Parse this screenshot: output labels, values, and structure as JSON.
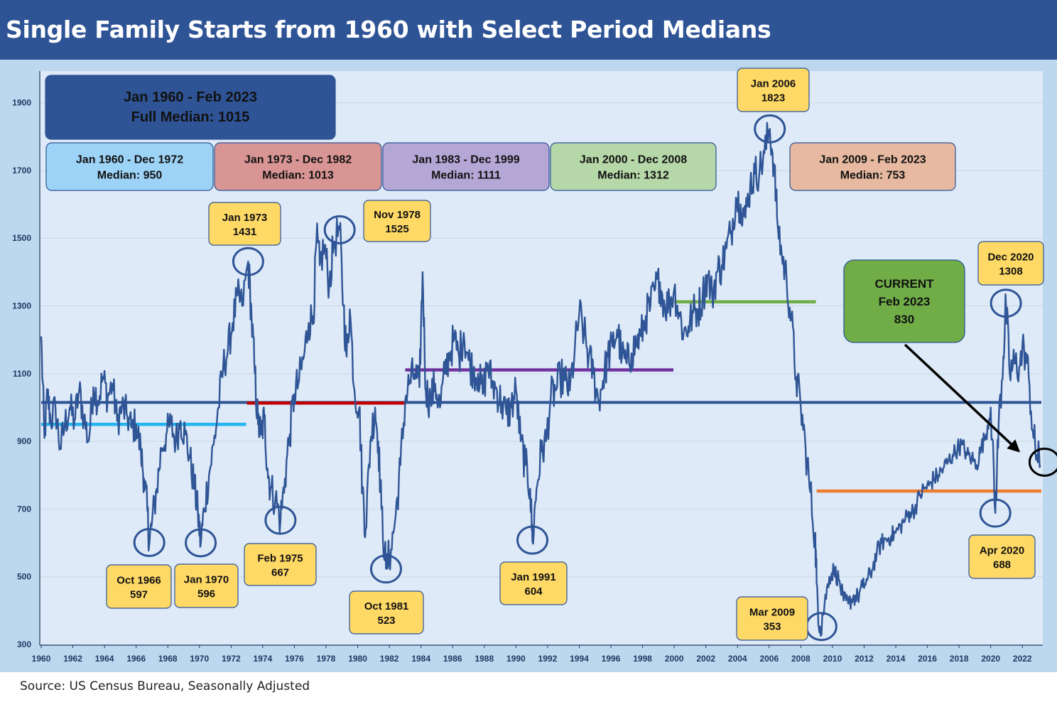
{
  "title": "Single Family Starts from 1960 with Select Period Medians",
  "source": "Source: US Census Bureau, Seasonally Adjusted",
  "colors": {
    "header": "#2f5496",
    "plot_bg": "#deeaf7",
    "frame": "#bdd7ee",
    "line": "#2f5596",
    "full_median": "#2f5496",
    "callout_fill": "#ffd966",
    "current_fill": "#70ad47"
  },
  "chart_data": {
    "type": "line",
    "title": "Single Family Starts from 1960 with Select Period Medians",
    "xlabel": "",
    "ylabel": "",
    "xlim": [
      1960,
      2023.2
    ],
    "ylim": [
      300,
      2000
    ],
    "yticks": [
      300,
      500,
      700,
      900,
      1100,
      1300,
      1500,
      1700,
      1900
    ],
    "xticks": [
      1960,
      1962,
      1964,
      1966,
      1968,
      1970,
      1972,
      1974,
      1976,
      1978,
      1980,
      1982,
      1984,
      1986,
      1988,
      1990,
      1992,
      1994,
      1996,
      1998,
      2000,
      2002,
      2004,
      2006,
      2008,
      2010,
      2012,
      2014,
      2016,
      2018,
      2020,
      2022
    ],
    "grid": "horizontal",
    "series": [
      {
        "values_xy": [
          [
            1960.0,
            1210
          ],
          [
            1960.2,
            910
          ],
          [
            1960.4,
            1040
          ],
          [
            1960.6,
            960
          ],
          [
            1960.9,
            1000
          ],
          [
            1961.2,
            880
          ],
          [
            1961.5,
            950
          ],
          [
            1961.8,
            1000
          ],
          [
            1962.1,
            960
          ],
          [
            1962.4,
            1050
          ],
          [
            1962.7,
            970
          ],
          [
            1963.0,
            900
          ],
          [
            1963.3,
            1060
          ],
          [
            1963.6,
            1020
          ],
          [
            1963.9,
            1090
          ],
          [
            1964.2,
            1030
          ],
          [
            1964.5,
            1070
          ],
          [
            1964.8,
            960
          ],
          [
            1965.1,
            1000
          ],
          [
            1965.4,
            980
          ],
          [
            1965.7,
            940
          ],
          [
            1966.0,
            950
          ],
          [
            1966.3,
            870
          ],
          [
            1966.5,
            790
          ],
          [
            1966.7,
            700
          ],
          [
            1966.83,
            597
          ],
          [
            1967.0,
            660
          ],
          [
            1967.3,
            760
          ],
          [
            1967.6,
            880
          ],
          [
            1967.9,
            920
          ],
          [
            1968.2,
            950
          ],
          [
            1968.5,
            900
          ],
          [
            1968.8,
            960
          ],
          [
            1969.1,
            920
          ],
          [
            1969.4,
            850
          ],
          [
            1969.7,
            760
          ],
          [
            1969.9,
            690
          ],
          [
            1970.08,
            596
          ],
          [
            1970.3,
            700
          ],
          [
            1970.6,
            800
          ],
          [
            1970.9,
            890
          ],
          [
            1971.2,
            1000
          ],
          [
            1971.5,
            1120
          ],
          [
            1971.8,
            1170
          ],
          [
            1972.1,
            1250
          ],
          [
            1972.4,
            1330
          ],
          [
            1972.7,
            1300
          ],
          [
            1973.08,
            1431
          ],
          [
            1973.3,
            1260
          ],
          [
            1973.5,
            1100
          ],
          [
            1973.7,
            950
          ],
          [
            1973.9,
            920
          ],
          [
            1974.1,
            970
          ],
          [
            1974.3,
            820
          ],
          [
            1974.5,
            760
          ],
          [
            1974.8,
            730
          ],
          [
            1975.12,
            667
          ],
          [
            1975.4,
            790
          ],
          [
            1975.7,
            920
          ],
          [
            1976.0,
            1040
          ],
          [
            1976.3,
            1080
          ],
          [
            1976.6,
            1150
          ],
          [
            1976.9,
            1250
          ],
          [
            1977.2,
            1270
          ],
          [
            1977.4,
            1500
          ],
          [
            1977.6,
            1420
          ],
          [
            1977.9,
            1480
          ],
          [
            1978.2,
            1360
          ],
          [
            1978.5,
            1490
          ],
          [
            1978.86,
            1525
          ],
          [
            1979.1,
            1300
          ],
          [
            1979.3,
            1150
          ],
          [
            1979.5,
            1290
          ],
          [
            1979.8,
            1050
          ],
          [
            1980.1,
            1000
          ],
          [
            1980.3,
            760
          ],
          [
            1980.5,
            640
          ],
          [
            1980.8,
            900
          ],
          [
            1981.1,
            1000
          ],
          [
            1981.3,
            900
          ],
          [
            1981.5,
            700
          ],
          [
            1981.79,
            523
          ],
          [
            1982.1,
            580
          ],
          [
            1982.4,
            680
          ],
          [
            1982.7,
            830
          ],
          [
            1983.0,
            1020
          ],
          [
            1983.3,
            1080
          ],
          [
            1983.6,
            1100
          ],
          [
            1983.9,
            1060
          ],
          [
            1984.1,
            1400
          ],
          [
            1984.3,
            1050
          ],
          [
            1984.6,
            1020
          ],
          [
            1984.9,
            1070
          ],
          [
            1985.2,
            1000
          ],
          [
            1985.5,
            1100
          ],
          [
            1985.8,
            1160
          ],
          [
            1986.1,
            1200
          ],
          [
            1986.4,
            1150
          ],
          [
            1986.7,
            1220
          ],
          [
            1987.0,
            1140
          ],
          [
            1987.3,
            1110
          ],
          [
            1987.6,
            1100
          ],
          [
            1987.9,
            1040
          ],
          [
            1988.2,
            1130
          ],
          [
            1988.5,
            1070
          ],
          [
            1988.8,
            1050
          ],
          [
            1989.1,
            1010
          ],
          [
            1989.4,
            980
          ],
          [
            1989.7,
            1000
          ],
          [
            1990.0,
            1050
          ],
          [
            1990.3,
            900
          ],
          [
            1990.6,
            830
          ],
          [
            1990.9,
            760
          ],
          [
            1991.04,
            604
          ],
          [
            1991.3,
            760
          ],
          [
            1991.6,
            870
          ],
          [
            1991.9,
            900
          ],
          [
            1992.2,
            1030
          ],
          [
            1992.5,
            1050
          ],
          [
            1992.8,
            1090
          ],
          [
            1993.1,
            1080
          ],
          [
            1993.4,
            1050
          ],
          [
            1993.7,
            1160
          ],
          [
            1994.0,
            1280
          ],
          [
            1994.3,
            1220
          ],
          [
            1994.6,
            1150
          ],
          [
            1994.9,
            1100
          ],
          [
            1995.2,
            1020
          ],
          [
            1995.5,
            1080
          ],
          [
            1995.8,
            1150
          ],
          [
            1996.1,
            1180
          ],
          [
            1996.4,
            1230
          ],
          [
            1996.7,
            1150
          ],
          [
            1997.0,
            1130
          ],
          [
            1997.3,
            1160
          ],
          [
            1997.6,
            1190
          ],
          [
            1997.9,
            1210
          ],
          [
            1998.2,
            1270
          ],
          [
            1998.5,
            1300
          ],
          [
            1998.8,
            1350
          ],
          [
            1999.1,
            1370
          ],
          [
            1999.4,
            1300
          ],
          [
            1999.7,
            1310
          ],
          [
            2000.0,
            1350
          ],
          [
            2000.3,
            1280
          ],
          [
            2000.6,
            1220
          ],
          [
            2000.9,
            1240
          ],
          [
            2001.2,
            1280
          ],
          [
            2001.5,
            1290
          ],
          [
            2001.8,
            1330
          ],
          [
            2002.1,
            1390
          ],
          [
            2002.4,
            1330
          ],
          [
            2002.7,
            1400
          ],
          [
            2003.0,
            1420
          ],
          [
            2003.3,
            1470
          ],
          [
            2003.6,
            1520
          ],
          [
            2003.9,
            1620
          ],
          [
            2004.2,
            1600
          ],
          [
            2004.5,
            1560
          ],
          [
            2004.8,
            1660
          ],
          [
            2005.1,
            1690
          ],
          [
            2005.4,
            1700
          ],
          [
            2005.7,
            1750
          ],
          [
            2006.04,
            1823
          ],
          [
            2006.3,
            1720
          ],
          [
            2006.5,
            1560
          ],
          [
            2006.8,
            1450
          ],
          [
            2007.1,
            1380
          ],
          [
            2007.4,
            1260
          ],
          [
            2007.7,
            1090
          ],
          [
            2008.0,
            1000
          ],
          [
            2008.3,
            880
          ],
          [
            2008.6,
            750
          ],
          [
            2008.9,
            620
          ],
          [
            2009.0,
            480
          ],
          [
            2009.21,
            353
          ],
          [
            2009.5,
            420
          ],
          [
            2009.8,
            500
          ],
          [
            2010.1,
            520
          ],
          [
            2010.4,
            490
          ],
          [
            2010.7,
            430
          ],
          [
            2011.0,
            420
          ],
          [
            2011.3,
            440
          ],
          [
            2011.6,
            440
          ],
          [
            2011.9,
            470
          ],
          [
            2012.2,
            490
          ],
          [
            2012.5,
            520
          ],
          [
            2012.8,
            570
          ],
          [
            2013.1,
            600
          ],
          [
            2013.4,
            610
          ],
          [
            2013.7,
            620
          ],
          [
            2014.0,
            630
          ],
          [
            2014.3,
            650
          ],
          [
            2014.6,
            670
          ],
          [
            2014.9,
            690
          ],
          [
            2015.2,
            700
          ],
          [
            2015.5,
            740
          ],
          [
            2015.8,
            760
          ],
          [
            2016.1,
            770
          ],
          [
            2016.4,
            790
          ],
          [
            2016.7,
            800
          ],
          [
            2017.0,
            820
          ],
          [
            2017.3,
            840
          ],
          [
            2017.6,
            860
          ],
          [
            2017.9,
            880
          ],
          [
            2018.2,
            890
          ],
          [
            2018.5,
            860
          ],
          [
            2018.8,
            850
          ],
          [
            2019.1,
            830
          ],
          [
            2019.4,
            880
          ],
          [
            2019.7,
            920
          ],
          [
            2020.0,
            1000
          ],
          [
            2020.29,
            688
          ],
          [
            2020.5,
            950
          ],
          [
            2020.8,
            1150
          ],
          [
            2020.96,
            1308
          ],
          [
            2021.2,
            1100
          ],
          [
            2021.5,
            1130
          ],
          [
            2021.8,
            1120
          ],
          [
            2022.1,
            1180
          ],
          [
            2022.4,
            1090
          ],
          [
            2022.7,
            910
          ],
          [
            2022.9,
            860
          ],
          [
            2023.13,
            830
          ]
        ]
      }
    ],
    "median_lines": [
      {
        "value": 1015,
        "x": [
          1960,
          2023.2
        ],
        "color": "#2f5496"
      },
      {
        "value": 950,
        "x": [
          1960,
          1972.95
        ],
        "color": "#22b5ef"
      },
      {
        "value": 1013,
        "x": [
          1973,
          1982.95
        ],
        "color": "#c00000"
      },
      {
        "value": 1111,
        "x": [
          1983,
          1999.95
        ],
        "color": "#7030a0"
      },
      {
        "value": 1312,
        "x": [
          2000,
          2008.95
        ],
        "color": "#70ad47"
      },
      {
        "value": 753,
        "x": [
          2009,
          2023.2
        ],
        "color": "#ed7d31"
      }
    ],
    "circles": [
      {
        "x": 1966.83,
        "y": 597
      },
      {
        "x": 1970.08,
        "y": 596
      },
      {
        "x": 1973.08,
        "y": 1431
      },
      {
        "x": 1975.12,
        "y": 667
      },
      {
        "x": 1978.86,
        "y": 1525
      },
      {
        "x": 1981.79,
        "y": 523
      },
      {
        "x": 1991.04,
        "y": 604
      },
      {
        "x": 2006.04,
        "y": 1823
      },
      {
        "x": 2009.21,
        "y": 353
      },
      {
        "x": 2020.29,
        "y": 688
      },
      {
        "x": 2020.96,
        "y": 1308
      },
      {
        "x": 2023.13,
        "y": 830
      }
    ],
    "median_boxes": [
      {
        "line1": "Jan 1960 - Feb 2023",
        "line2": "Full Median: 1015",
        "fill": "#2f5496",
        "text_color": "#ffffff"
      },
      {
        "line1": "Jan 1960 - Dec 1972",
        "line2": "Median: 950",
        "fill": "#9dd3f7"
      },
      {
        "line1": "Jan 1973 - Dec 1982",
        "line2": "Median: 1013",
        "fill": "#d99594"
      },
      {
        "line1": "Jan 1983 - Dec 1999",
        "line2": "Median: 1111",
        "fill": "#b4a7d6"
      },
      {
        "line1": "Jan 2000 - Dec 2008",
        "line2": "Median: 1312",
        "fill": "#b6d7a8"
      },
      {
        "line1": "Jan 2009 - Feb 2023",
        "line2": "Median: 753",
        "fill": "#e6b9a0"
      }
    ],
    "callouts": [
      {
        "line1": "Oct 1966",
        "line2": "597"
      },
      {
        "line1": "Jan 1970",
        "line2": "596"
      },
      {
        "line1": "Jan 1973",
        "line2": "1431"
      },
      {
        "line1": "Feb 1975",
        "line2": "667"
      },
      {
        "line1": "Nov 1978",
        "line2": "1525"
      },
      {
        "line1": "Oct 1981",
        "line2": "523"
      },
      {
        "line1": "Jan 1991",
        "line2": "604"
      },
      {
        "line1": "Jan 2006",
        "line2": "1823"
      },
      {
        "line1": "Mar 2009",
        "line2": "353"
      },
      {
        "line1": "Apr 2020",
        "line2": "688"
      },
      {
        "line1": "Dec 2020",
        "line2": "1308"
      }
    ],
    "current": {
      "line1": "CURRENT",
      "line2": "Feb 2023",
      "line3": "830"
    }
  }
}
